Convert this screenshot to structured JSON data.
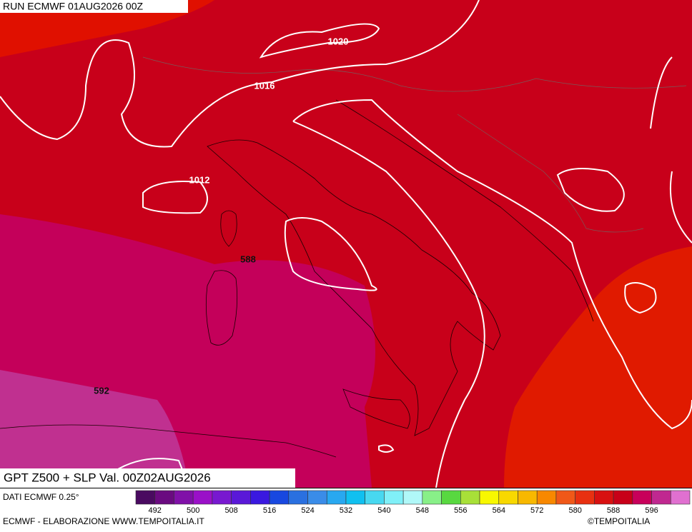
{
  "header": {
    "run": "RUN ECMWF 01AUG2026 00Z"
  },
  "map": {
    "slp_labels": [
      "1020",
      "1016",
      "1012"
    ],
    "gpt_labels": [
      "588",
      "592"
    ]
  },
  "footer": {
    "title": "GPT Z500 + SLP Val. 00Z02AUG2026",
    "source": "DATI ECMWF 0.25°",
    "credit": "ECMWF - ELABORAZIONE WWW.TEMPOITALIA.IT",
    "copyright": "©TEMPOITALIA"
  },
  "colorbar": {
    "labels": [
      492,
      500,
      508,
      516,
      524,
      532,
      540,
      548,
      556,
      564,
      572,
      580,
      588,
      596
    ],
    "colors": [
      "#4a0a60",
      "#6a0a80",
      "#8010a8",
      "#9a10c8",
      "#7818d0",
      "#5a18d8",
      "#3a18e0",
      "#1848e0",
      "#2a70e0",
      "#3a8ce8",
      "#28a8f0",
      "#10c0f0",
      "#48d8f0",
      "#80f0f8",
      "#b0f8f8",
      "#88f088",
      "#58d840",
      "#a8e038",
      "#f8f800",
      "#f8d800",
      "#f8b800",
      "#f88800",
      "#f05818",
      "#e83010",
      "#d81010",
      "#c80018",
      "#c8005a",
      "#c02890",
      "#e070d0"
    ]
  }
}
